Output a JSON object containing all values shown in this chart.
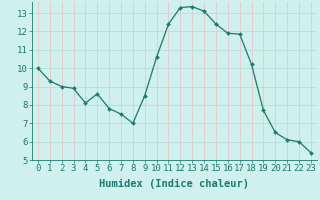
{
  "x": [
    0,
    1,
    2,
    3,
    4,
    5,
    6,
    7,
    8,
    9,
    10,
    11,
    12,
    13,
    14,
    15,
    16,
    17,
    18,
    19,
    20,
    21,
    22,
    23
  ],
  "y": [
    10.0,
    9.3,
    9.0,
    8.9,
    8.1,
    8.6,
    7.8,
    7.5,
    7.0,
    8.5,
    10.6,
    12.4,
    13.3,
    13.35,
    13.1,
    12.4,
    11.9,
    11.85,
    10.2,
    7.7,
    6.5,
    6.1,
    6.0,
    5.4
  ],
  "line_color": "#1a7a6e",
  "marker": "D",
  "marker_size": 2.0,
  "bg_color": "#cff0ec",
  "grid_color_x": "#e8c8c8",
  "grid_color_y": "#b8ddd8",
  "xlabel": "Humidex (Indice chaleur)",
  "xlim": [
    -0.5,
    23.5
  ],
  "ylim": [
    5,
    13.6
  ],
  "yticks": [
    5,
    6,
    7,
    8,
    9,
    10,
    11,
    12,
    13
  ],
  "xticks": [
    0,
    1,
    2,
    3,
    4,
    5,
    6,
    7,
    8,
    9,
    10,
    11,
    12,
    13,
    14,
    15,
    16,
    17,
    18,
    19,
    20,
    21,
    22,
    23
  ],
  "tick_color": "#1a7a6e",
  "font_size": 6.5,
  "label_font_size": 7.5
}
